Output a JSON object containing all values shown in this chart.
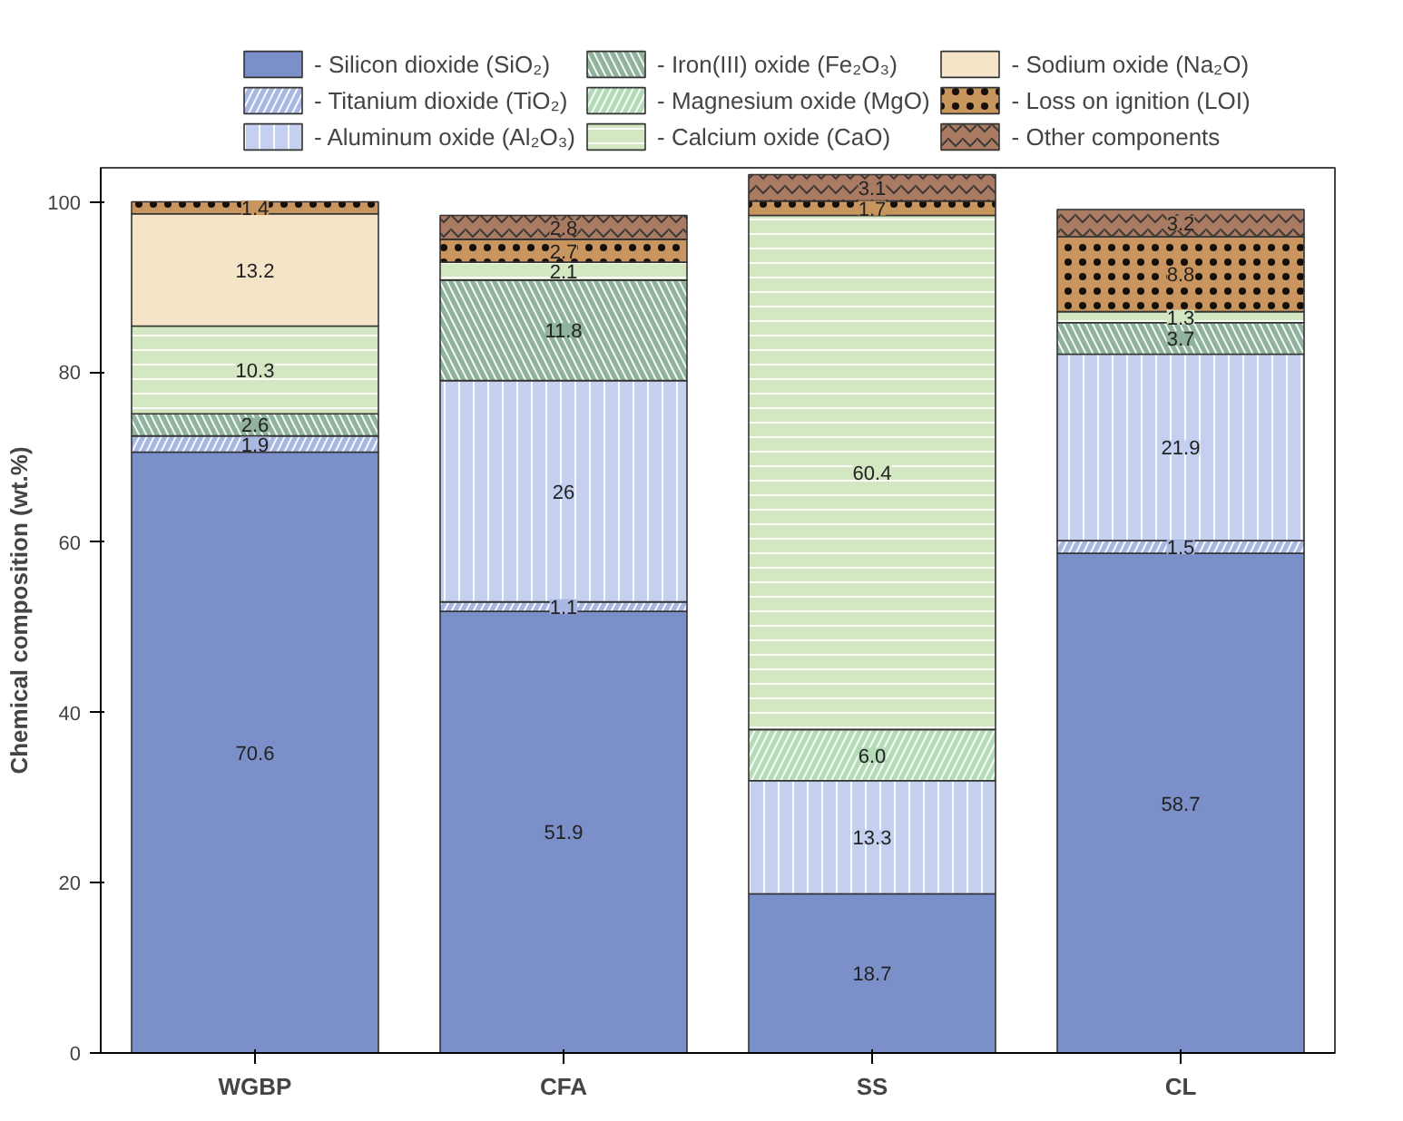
{
  "chart_data": {
    "type": "bar",
    "stacked": true,
    "ylabel": "Chemical composition (wt.%)",
    "categories": [
      "WGBP",
      "CFA",
      "SS",
      "CL"
    ],
    "ylim": [
      0,
      104
    ],
    "yticks": [
      0,
      20,
      40,
      60,
      80,
      100
    ],
    "grid": false,
    "legend": "top",
    "series": [
      {
        "name": "- Silicon dioxide (SiO₂)",
        "color": "#7b8fc8",
        "values": [
          70.6,
          51.9,
          18.7,
          58.7
        ],
        "value_labels": [
          "70.6",
          "51.9",
          "18.7",
          "58.7"
        ]
      },
      {
        "name": "- Titanium dioxide (TiO₂)",
        "color": "#a9b7e3",
        "values": [
          1.9,
          1.1,
          null,
          1.5
        ],
        "value_labels": [
          "1.9",
          "1.1",
          null,
          "1.5"
        ]
      },
      {
        "name": "- Aluminum oxide (Al₂O₃)",
        "color": "#c5d0f0",
        "values": [
          null,
          26,
          13.3,
          21.9
        ],
        "value_labels": [
          null,
          "26",
          "13.3",
          "21.9"
        ]
      },
      {
        "name": "- Iron(III) oxide (Fe₂O₃)",
        "color": "#8fb39c",
        "values": [
          2.6,
          11.8,
          null,
          3.7
        ],
        "value_labels": [
          "2.6",
          "11.8",
          null,
          "3.7"
        ]
      },
      {
        "name": "- Magnesium oxide (MgO)",
        "color": "#b4dbb8",
        "values": [
          null,
          null,
          6.0,
          null
        ],
        "value_labels": [
          null,
          null,
          "6.0",
          null
        ]
      },
      {
        "name": "- Calcium oxide (CaO)",
        "color": "#d3e8c2",
        "values": [
          10.3,
          2.1,
          60.4,
          1.3
        ],
        "value_labels": [
          "10.3",
          "2.1",
          "60.4",
          "1.3"
        ]
      },
      {
        "name": "- Sodium oxide (Na₂O)",
        "color": "#f6e4c9",
        "values": [
          13.2,
          null,
          null,
          null
        ],
        "value_labels": [
          "13.2",
          null,
          null,
          null
        ]
      },
      {
        "name": "- Loss on ignition (LOI)",
        "color": "#c9955e",
        "values": [
          1.4,
          2.7,
          1.7,
          8.8
        ],
        "value_labels": [
          "1.4",
          "2.7",
          "1.7",
          "8.8"
        ]
      },
      {
        "name": "- Other components",
        "color": "#a87b62",
        "values": [
          null,
          2.8,
          3.1,
          3.2
        ],
        "value_labels": [
          null,
          "2.8",
          "3.1",
          "3.2"
        ]
      }
    ]
  }
}
